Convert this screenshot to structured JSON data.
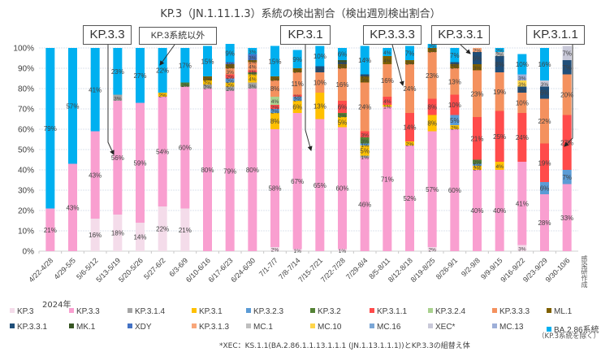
{
  "chart_data": {
    "type": "bar",
    "stacked": true,
    "title": "KP.3（JN.1.11.1.3）系統の検出割合（検出週別検出割合）",
    "xlabel": "2024年",
    "ylabel": "",
    "ylim": [
      0,
      100
    ],
    "yticks": [
      "0%",
      "10%",
      "20%",
      "30%",
      "40%",
      "50%",
      "60%",
      "70%",
      "80%",
      "90%",
      "100%"
    ],
    "grid": true,
    "legend_position": "bottom",
    "categories": [
      "4/22-4/28",
      "4/29-5/5",
      "5/6-5/12",
      "5/13-5/19",
      "5/20-5/26",
      "5/27-6/2",
      "6/3-6/9",
      "6/10-6/16",
      "6/17-6/23",
      "6/24-6/30",
      "7/1-7/7",
      "7/8-7/14",
      "7/15-7/21",
      "7/22-7/28",
      "7/29-8/4",
      "8/5-8/11",
      "8/12-8/18",
      "8/19-8/25",
      "8/26-9/1",
      "9/2-9/8",
      "9/9-9/15",
      "9/16-9/22",
      "9/23-9/29",
      "9/30-10/6"
    ],
    "series": [
      {
        "name": "KP.3",
        "color": "#f4dcea",
        "values": [
          0,
          0,
          16,
          18,
          14,
          22,
          21,
          0,
          0,
          0,
          2,
          1,
          0,
          1,
          0,
          0,
          0,
          2,
          0,
          0,
          0,
          3,
          0,
          0
        ]
      },
      {
        "name": "KP.3.3",
        "color": "#f99fd0",
        "values": [
          21,
          43,
          43,
          56,
          59,
          54,
          60,
          80,
          79,
          80,
          58,
          67,
          65,
          60,
          46,
          71,
          52,
          57,
          60,
          40,
          40,
          41,
          28,
          33
        ]
      },
      {
        "name": "KP.3.1.4",
        "color": "#a5a5a5",
        "values": [
          0,
          0,
          0,
          3,
          0,
          0,
          0,
          2,
          2,
          3,
          0,
          0,
          0,
          0,
          1,
          0,
          0,
          0,
          0,
          0,
          0,
          0,
          0,
          0
        ]
      },
      {
        "name": "KP.3.1",
        "color": "#ffc000",
        "values": [
          0,
          0,
          0,
          0,
          0,
          2,
          0,
          2,
          2,
          4,
          8,
          6,
          13,
          5,
          5,
          1,
          2,
          8,
          2,
          2,
          4,
          0,
          0,
          0
        ]
      },
      {
        "name": "KP.3.2.3",
        "color": "#5b9bd5",
        "values": [
          0,
          0,
          0,
          0,
          0,
          0,
          0,
          0,
          2,
          0,
          2,
          2,
          0,
          0,
          1,
          0,
          0,
          0,
          5,
          1,
          0,
          0,
          6,
          7
        ]
      },
      {
        "name": "KP.3.2",
        "color": "#548235",
        "values": [
          0,
          0,
          0,
          0,
          0,
          0,
          2,
          0,
          0,
          1,
          0,
          0,
          0,
          2,
          3,
          0,
          0,
          0,
          0,
          2,
          0,
          0,
          0,
          0
        ]
      },
      {
        "name": "KP.3.1.1",
        "color": "#ff4b4b",
        "values": [
          0,
          0,
          0,
          0,
          0,
          0,
          0,
          0,
          2,
          1,
          2,
          1,
          0,
          6,
          3,
          4,
          14,
          8,
          10,
          21,
          25,
          24,
          19,
          27
        ]
      },
      {
        "name": "KP.3.2.4",
        "color": "#a9d18e",
        "values": [
          0,
          0,
          0,
          0,
          0,
          0,
          0,
          0,
          0,
          0,
          4,
          0,
          0,
          0,
          0,
          0,
          0,
          0,
          0,
          0,
          0,
          0,
          0,
          0
        ]
      },
      {
        "name": "KP.3.3.3",
        "color": "#f4915e",
        "values": [
          0,
          0,
          0,
          0,
          0,
          0,
          0,
          0,
          3,
          4,
          8,
          11,
          10,
          16,
          24,
          16,
          24,
          23,
          13,
          23,
          19,
          10,
          22,
          20
        ]
      },
      {
        "name": "ML.1",
        "color": "#7f6000",
        "values": [
          0,
          0,
          0,
          0,
          0,
          0,
          0,
          2,
          2,
          1,
          2,
          2,
          0,
          2,
          3,
          4,
          2,
          2,
          2,
          3,
          0,
          0,
          0,
          0
        ]
      },
      {
        "name": "KP.3.3.1",
        "color": "#1f4e79",
        "values": [
          0,
          0,
          0,
          0,
          0,
          0,
          0,
          0,
          0,
          0,
          0,
          0,
          3,
          1,
          1,
          0,
          0,
          0,
          1,
          6,
          8,
          3,
          6,
          7
        ]
      },
      {
        "name": "MK.1",
        "color": "#375623",
        "values": [
          0,
          0,
          0,
          0,
          0,
          0,
          0,
          0,
          0,
          0,
          0,
          0,
          0,
          1,
          0,
          0,
          0,
          0,
          0,
          0,
          0,
          0,
          0,
          0
        ]
      },
      {
        "name": "XDY",
        "color": "#4472c4",
        "values": [
          0,
          0,
          0,
          0,
          0,
          0,
          0,
          0,
          1,
          3,
          0,
          0,
          0,
          0,
          0,
          0,
          0,
          0,
          0,
          0,
          0,
          0,
          0,
          0
        ]
      },
      {
        "name": "KP.3.1.3",
        "color": "#f8a67a",
        "values": [
          0,
          0,
          0,
          0,
          0,
          0,
          0,
          0,
          0,
          0,
          0,
          0,
          0,
          0,
          0,
          0,
          0,
          0,
          0,
          2,
          0,
          0,
          0,
          0
        ]
      },
      {
        "name": "MC.1",
        "color": "#bfbfbf",
        "values": [
          0,
          0,
          0,
          0,
          0,
          0,
          0,
          0,
          0,
          0,
          0,
          0,
          0,
          0,
          0,
          0,
          0,
          0,
          0,
          0,
          2,
          0,
          0,
          0
        ]
      },
      {
        "name": "MC.10",
        "color": "#ffd54a",
        "values": [
          0,
          0,
          0,
          0,
          0,
          0,
          0,
          0,
          0,
          0,
          0,
          0,
          0,
          0,
          0,
          0,
          0,
          0,
          0,
          0,
          0,
          3,
          0,
          0
        ]
      },
      {
        "name": "MC.16",
        "color": "#7aa6d6",
        "values": [
          0,
          0,
          0,
          0,
          0,
          0,
          0,
          0,
          0,
          0,
          0,
          0,
          0,
          0,
          0,
          0,
          0,
          0,
          0,
          0,
          0,
          0,
          0,
          0
        ]
      },
      {
        "name": "XEC*",
        "color": "#c9c9d9",
        "values": [
          0,
          0,
          0,
          0,
          0,
          0,
          0,
          0,
          0,
          0,
          0,
          0,
          0,
          0,
          0,
          0,
          0,
          0,
          0,
          0,
          0,
          0,
          3,
          7
        ]
      },
      {
        "name": "MC.13",
        "color": "#9dafd8",
        "values": [
          0,
          0,
          0,
          0,
          0,
          0,
          0,
          0,
          0,
          0,
          0,
          0,
          0,
          0,
          0,
          0,
          0,
          0,
          0,
          0,
          0,
          3,
          0,
          0
        ]
      },
      {
        "name": "BA.2.86系統",
        "color": "#00b0f0",
        "values": [
          79,
          57,
          41,
          23,
          27,
          22,
          17,
          15,
          9,
          3,
          15,
          9,
          10,
          6,
          14,
          4,
          7,
          2,
          7,
          0,
          2,
          10,
          16,
          0
        ]
      }
    ],
    "annotations": [
      {
        "text": "KP.3.3",
        "points_to": "5/13-5/19 KP.3.3"
      },
      {
        "text": "KP.3系統以外",
        "points_to": "5/27-6/2 BA.2.86系統"
      },
      {
        "text": "KP.3.1",
        "points_to": "7/15-7/21 KP.3.1"
      },
      {
        "text": "KP.3.3.3",
        "points_to": "8/12-8/18 KP.3.3.3"
      },
      {
        "text": "KP.3.3.1",
        "points_to": "9/2-9/8 KP.3.3.1"
      },
      {
        "text": "KP.3.1.1",
        "points_to": "9/30-10/6 KP.3.1.1"
      }
    ]
  },
  "legend_subnote": "（KP.3系統を除く）",
  "footnote": "*XEC：KS.1.1(BA.2.86.1.1.13.1.1.1 (JN.1.13.1.1.1))とKP.3.3の組替え体",
  "source": "感染研作成"
}
